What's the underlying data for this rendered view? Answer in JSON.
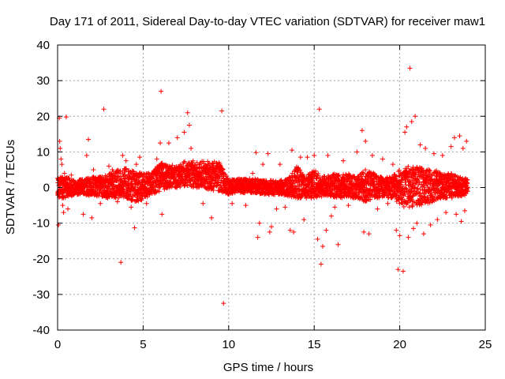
{
  "chart_data": {
    "type": "scatter",
    "title": "Day 171 of 2011, Sidereal Day-to-day VTEC variation (SDTVAR) for receiver maw1",
    "xlabel": "GPS time / hours",
    "ylabel": "SDTVAR / TECUs",
    "xlim": [
      0,
      25
    ],
    "ylim": [
      -40,
      40
    ],
    "xticks": [
      0,
      5,
      10,
      15,
      20,
      25
    ],
    "yticks": [
      -40,
      -30,
      -20,
      -10,
      0,
      10,
      20,
      30,
      40
    ],
    "xtick_labels": [
      "0",
      "5",
      "10",
      "15",
      "20",
      "25"
    ],
    "ytick_labels": [
      "-40",
      "-30",
      "-20",
      "-10",
      "0",
      "10",
      "20",
      "30",
      "40"
    ],
    "grid": true,
    "marker": "+",
    "color": "#ff0000",
    "series": [
      {
        "name": "SDTVAR",
        "points": [
          [
            0.05,
            -10.5
          ],
          [
            0.1,
            19.5
          ],
          [
            0.12,
            13.0
          ],
          [
            0.15,
            11.0
          ],
          [
            0.2,
            8.0
          ],
          [
            0.25,
            6.5
          ],
          [
            0.3,
            -5.0
          ],
          [
            0.35,
            -7.0
          ],
          [
            0.4,
            4.0
          ],
          [
            0.5,
            19.8
          ],
          [
            0.6,
            -6.0
          ],
          [
            0.8,
            3.5
          ],
          [
            1.5,
            -7.5
          ],
          [
            1.7,
            9.0
          ],
          [
            1.8,
            13.5
          ],
          [
            2.0,
            -8.5
          ],
          [
            2.1,
            5.0
          ],
          [
            2.5,
            -4.5
          ],
          [
            2.7,
            22.0
          ],
          [
            3.0,
            6.0
          ],
          [
            3.2,
            5.0
          ],
          [
            3.5,
            -4.0
          ],
          [
            3.7,
            -21.0
          ],
          [
            3.8,
            9.0
          ],
          [
            4.0,
            7.5
          ],
          [
            4.3,
            -5.5
          ],
          [
            4.5,
            -11.3
          ],
          [
            4.6,
            6.5
          ],
          [
            4.8,
            8.5
          ],
          [
            5.2,
            -4.5
          ],
          [
            5.5,
            4.0
          ],
          [
            5.8,
            8.0
          ],
          [
            6.0,
            12.5
          ],
          [
            6.05,
            27.0
          ],
          [
            6.1,
            -7.5
          ],
          [
            6.5,
            12.5
          ],
          [
            7.0,
            14.0
          ],
          [
            7.4,
            15.5
          ],
          [
            7.6,
            21.0
          ],
          [
            7.7,
            17.5
          ],
          [
            7.8,
            11.0
          ],
          [
            8.5,
            -4.5
          ],
          [
            9.0,
            -8.5
          ],
          [
            9.6,
            21.5
          ],
          [
            9.7,
            -32.5
          ],
          [
            10.2,
            -4.5
          ],
          [
            11.0,
            -5.0
          ],
          [
            11.4,
            4.0
          ],
          [
            11.6,
            9.8
          ],
          [
            11.7,
            -14.0
          ],
          [
            11.8,
            -10.0
          ],
          [
            12.0,
            6.5
          ],
          [
            12.3,
            9.5
          ],
          [
            12.4,
            -12.5
          ],
          [
            12.5,
            -11.0
          ],
          [
            12.8,
            -6.0
          ],
          [
            13.0,
            6.5
          ],
          [
            13.3,
            -5.5
          ],
          [
            13.6,
            -12.0
          ],
          [
            13.7,
            10.5
          ],
          [
            13.8,
            -12.5
          ],
          [
            14.2,
            8.5
          ],
          [
            14.4,
            -9.0
          ],
          [
            14.6,
            8.5
          ],
          [
            15.0,
            9.0
          ],
          [
            15.2,
            -14.5
          ],
          [
            15.3,
            22.0
          ],
          [
            15.4,
            -21.5
          ],
          [
            15.5,
            -16.5
          ],
          [
            15.7,
            -12.0
          ],
          [
            15.8,
            9.0
          ],
          [
            16.0,
            -8.0
          ],
          [
            16.2,
            -5.5
          ],
          [
            16.4,
            -16.0
          ],
          [
            16.7,
            7.5
          ],
          [
            17.0,
            -5.0
          ],
          [
            17.5,
            10.0
          ],
          [
            17.8,
            16.0
          ],
          [
            17.9,
            -12.5
          ],
          [
            18.0,
            13.0
          ],
          [
            18.2,
            -13.0
          ],
          [
            18.4,
            9.0
          ],
          [
            18.7,
            -6.0
          ],
          [
            19.0,
            8.0
          ],
          [
            19.3,
            -4.5
          ],
          [
            19.6,
            6.5
          ],
          [
            19.8,
            -12.0
          ],
          [
            19.9,
            -23.0
          ],
          [
            20.0,
            -13.5
          ],
          [
            20.2,
            -23.5
          ],
          [
            20.3,
            15.5
          ],
          [
            20.4,
            17.0
          ],
          [
            20.5,
            -14.0
          ],
          [
            20.6,
            33.5
          ],
          [
            20.7,
            18.5
          ],
          [
            20.8,
            -11.5
          ],
          [
            20.9,
            20.0
          ],
          [
            21.0,
            -10.0
          ],
          [
            21.2,
            12.0
          ],
          [
            21.4,
            -13.0
          ],
          [
            21.5,
            11.0
          ],
          [
            21.8,
            -10.5
          ],
          [
            22.0,
            9.5
          ],
          [
            22.2,
            -9.0
          ],
          [
            22.5,
            9.0
          ],
          [
            22.7,
            -7.0
          ],
          [
            23.0,
            11.5
          ],
          [
            23.2,
            14.0
          ],
          [
            23.3,
            -7.5
          ],
          [
            23.5,
            14.5
          ],
          [
            23.6,
            -9.5
          ],
          [
            23.7,
            11.0
          ],
          [
            23.8,
            -6.5
          ],
          [
            23.9,
            13.0
          ]
        ],
        "band": [
          [
            0.0,
            3.0,
            -3.0
          ],
          [
            0.5,
            3.0,
            -3.0
          ],
          [
            1.0,
            2.0,
            -2.0
          ],
          [
            1.5,
            2.5,
            -2.0
          ],
          [
            2.0,
            3.0,
            -2.5
          ],
          [
            2.5,
            3.0,
            -2.5
          ],
          [
            3.0,
            4.0,
            -3.0
          ],
          [
            3.5,
            5.0,
            -3.0
          ],
          [
            4.0,
            5.5,
            -3.0
          ],
          [
            4.5,
            4.5,
            -4.0
          ],
          [
            5.0,
            4.0,
            -3.5
          ],
          [
            5.5,
            4.0,
            -2.0
          ],
          [
            6.0,
            7.0,
            -1.0
          ],
          [
            6.5,
            6.5,
            0.0
          ],
          [
            7.0,
            6.0,
            0.0
          ],
          [
            7.5,
            7.5,
            0.5
          ],
          [
            8.0,
            7.5,
            0.0
          ],
          [
            8.5,
            7.5,
            0.0
          ],
          [
            9.0,
            7.5,
            -1.0
          ],
          [
            9.5,
            7.0,
            -1.0
          ],
          [
            10.0,
            2.0,
            -2.0
          ],
          [
            10.5,
            2.5,
            -1.5
          ],
          [
            11.0,
            2.5,
            -1.5
          ],
          [
            11.5,
            2.5,
            -1.5
          ],
          [
            12.0,
            2.0,
            -2.0
          ],
          [
            12.5,
            2.0,
            -2.0
          ],
          [
            13.0,
            2.0,
            -2.0
          ],
          [
            13.5,
            2.5,
            -2.5
          ],
          [
            14.0,
            6.0,
            -3.0
          ],
          [
            14.5,
            3.0,
            -3.0
          ],
          [
            15.0,
            5.0,
            -3.0
          ],
          [
            15.5,
            3.0,
            -2.5
          ],
          [
            16.0,
            4.0,
            -2.5
          ],
          [
            16.5,
            3.5,
            -3.0
          ],
          [
            17.0,
            4.0,
            -3.0
          ],
          [
            17.5,
            3.0,
            -3.0
          ],
          [
            18.0,
            5.0,
            -4.0
          ],
          [
            18.5,
            4.0,
            -3.0
          ],
          [
            19.0,
            3.0,
            -3.0
          ],
          [
            19.5,
            3.0,
            -3.0
          ],
          [
            20.0,
            5.0,
            -5.0
          ],
          [
            20.5,
            6.0,
            -6.0
          ],
          [
            21.0,
            6.0,
            -5.0
          ],
          [
            21.5,
            5.0,
            -5.0
          ],
          [
            22.0,
            5.0,
            -4.0
          ],
          [
            22.5,
            4.0,
            -3.0
          ],
          [
            23.0,
            4.0,
            -3.0
          ],
          [
            23.5,
            3.0,
            -2.5
          ],
          [
            24.0,
            2.5,
            -2.0
          ]
        ]
      }
    ]
  }
}
